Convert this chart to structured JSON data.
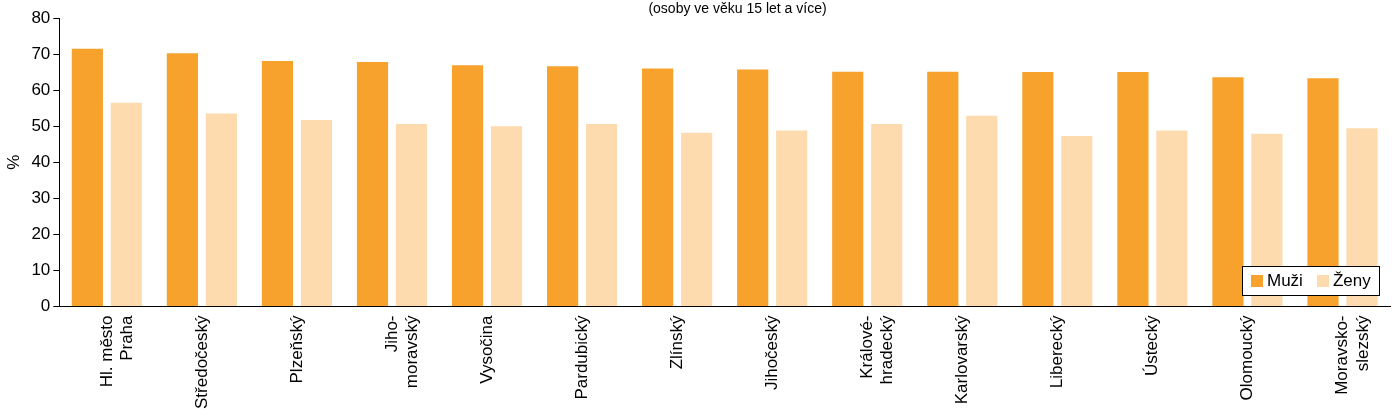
{
  "chart_data": {
    "type": "bar",
    "subtitle": "(osoby ve věku 15 let a více)",
    "ylabel": "%",
    "categories": [
      "Hl. město\nPraha",
      "Středočeský",
      "Plzeňský",
      "Jiho-\nmoravský",
      "Vysočina",
      "Pardubický",
      "Zlínský",
      "Jihočeský",
      "Králové-\nhradecký",
      "Karlovarský",
      "Liberecký",
      "Ústecký",
      "Olomoucký",
      "Moravsko-\nslezský"
    ],
    "series": [
      {
        "name": "Muži",
        "color": "#f7a22c",
        "values": [
          71.5,
          70.2,
          68.1,
          67.8,
          66.9,
          66.6,
          66.0,
          65.7,
          65.1,
          65.1,
          65.0,
          65.0,
          63.6,
          63.3
        ]
      },
      {
        "name": "Ženy",
        "color": "#fddbaf",
        "values": [
          56.5,
          53.5,
          51.7,
          50.6,
          50.0,
          50.6,
          48.2,
          48.8,
          50.6,
          52.9,
          47.3,
          48.8,
          47.9,
          49.4
        ]
      }
    ],
    "ylim": [
      0,
      80
    ],
    "yticks": [
      0,
      10,
      20,
      30,
      40,
      50,
      60,
      70,
      80
    ],
    "grid": false,
    "legend": "bottom right"
  }
}
